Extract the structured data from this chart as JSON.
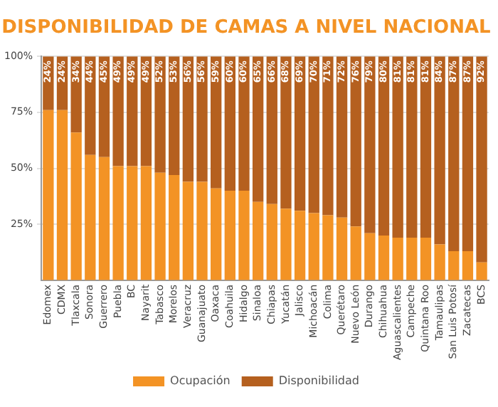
{
  "chart_data": {
    "type": "bar",
    "title": "DISPONIBILIDAD DE CAMAS A NIVEL NACIONAL",
    "stacked": true,
    "grid": "y",
    "legend": "bottom",
    "categories": [
      "Edomex",
      "CDMX",
      "Tlaxcala",
      "Sonora",
      "Guerrero",
      "Puebla",
      "BC",
      "Nayarit",
      "Tabasco",
      "Morelos",
      "Veracruz",
      "Guanajuato",
      "Oaxaca",
      "Coahuila",
      "Hidalgo",
      "Sinaloa",
      "Chiapas",
      "Yucatán",
      "Jalisco",
      "Michoacán",
      "Colima",
      "Querétaro",
      "Nuevo León",
      "Durango",
      "Chihuahua",
      "Aguascalientes",
      "Campeche",
      "Quintana Roo",
      "Tamaulipas",
      "San Luis Potosí",
      "Zacatecas",
      "BCS"
    ],
    "ylim": [
      0,
      100
    ],
    "yticks": [
      {
        "value": 25,
        "label": "25%"
      },
      {
        "value": 50,
        "label": "50%"
      },
      {
        "value": 75,
        "label": "75%"
      },
      {
        "value": 100,
        "label": "100%"
      }
    ],
    "series": [
      {
        "name": "Ocupación",
        "color": "#f39325",
        "values": [
          76,
          76,
          66,
          56,
          55,
          51,
          51,
          51,
          48,
          47,
          44,
          44,
          41,
          40,
          40,
          35,
          34,
          32,
          31,
          30,
          29,
          28,
          24,
          21,
          20,
          19,
          19,
          19,
          16,
          13,
          13,
          8
        ]
      },
      {
        "name": "Disponibilidad",
        "color": "#b5601f",
        "values": [
          24,
          24,
          34,
          44,
          45,
          49,
          49,
          49,
          52,
          53,
          56,
          56,
          59,
          60,
          60,
          65,
          66,
          68,
          69,
          70,
          71,
          72,
          76,
          79,
          80,
          81,
          81,
          81,
          84,
          87,
          87,
          92
        ],
        "value_labels": [
          "24%",
          "24%",
          "34%",
          "44%",
          "45%",
          "49%",
          "49%",
          "49%",
          "52%",
          "53%",
          "56%",
          "56%",
          "59%",
          "60%",
          "60%",
          "65%",
          "66%",
          "68%",
          "69%",
          "70%",
          "71%",
          "72%",
          "76%",
          "79%",
          "80%",
          "81%",
          "81%",
          "81%",
          "84%",
          "87%",
          "87%",
          "92%"
        ]
      }
    ]
  }
}
